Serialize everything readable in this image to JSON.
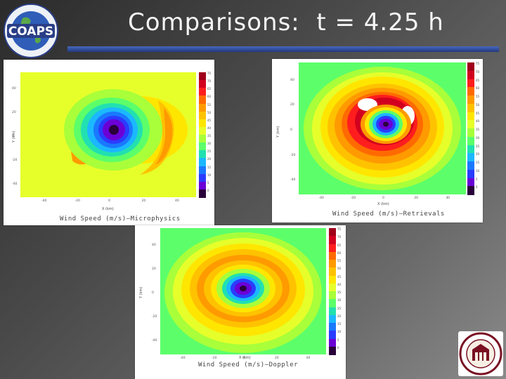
{
  "slide": {
    "title": "Comparisons:  t = 4.25 h"
  },
  "logo": {
    "name": "COAPS",
    "ring_text": "Florida State University Center for Ocean-Atmospheric Prediction Studies"
  },
  "seal": {
    "name": "Florida State University seal",
    "ring_text": "Florida State University 1851"
  },
  "colorbar": {
    "tick_labels": [
      "75",
      "70",
      "65",
      "60",
      "55",
      "50",
      "45",
      "40",
      "35",
      "30",
      "25",
      "20",
      "15",
      "10",
      "5",
      "0"
    ],
    "colors": [
      "#a0001a",
      "#d2001f",
      "#ff1d1d",
      "#ff6a00",
      "#ff9a00",
      "#ffc200",
      "#ffe600",
      "#e6ff2a",
      "#a8ff3a",
      "#5cff6a",
      "#22e0b0",
      "#1cb8ff",
      "#1a78ff",
      "#2a3cff",
      "#6a00d6",
      "#2a003a"
    ]
  },
  "panels": [
    {
      "id": "microphysics",
      "caption": "Wind Speed (m/s)—Microphysics",
      "xlabel": "X (km)",
      "ylabel": "Y (km)",
      "xticks": [
        "-40",
        "-20",
        "0",
        "20",
        "40"
      ],
      "yticks": [
        "40",
        "20",
        "0",
        "-20",
        "-40"
      ]
    },
    {
      "id": "retrievals",
      "caption": "Wind Speed (m/s)—Retrievals",
      "xlabel": "X (km)",
      "ylabel": "Y (km)",
      "xticks": [
        "-40",
        "-20",
        "0",
        "20",
        "40"
      ],
      "yticks": [
        "40",
        "20",
        "0",
        "-20",
        "-40"
      ]
    },
    {
      "id": "doppler",
      "caption": "Wind Speed (m/s)—Doppler",
      "xlabel": "X (km)",
      "ylabel": "Y (km)",
      "xticks": [
        "-40",
        "-20",
        "0",
        "20",
        "40"
      ],
      "yticks": [
        "40",
        "20",
        "0",
        "-20",
        "-40"
      ]
    }
  ]
}
